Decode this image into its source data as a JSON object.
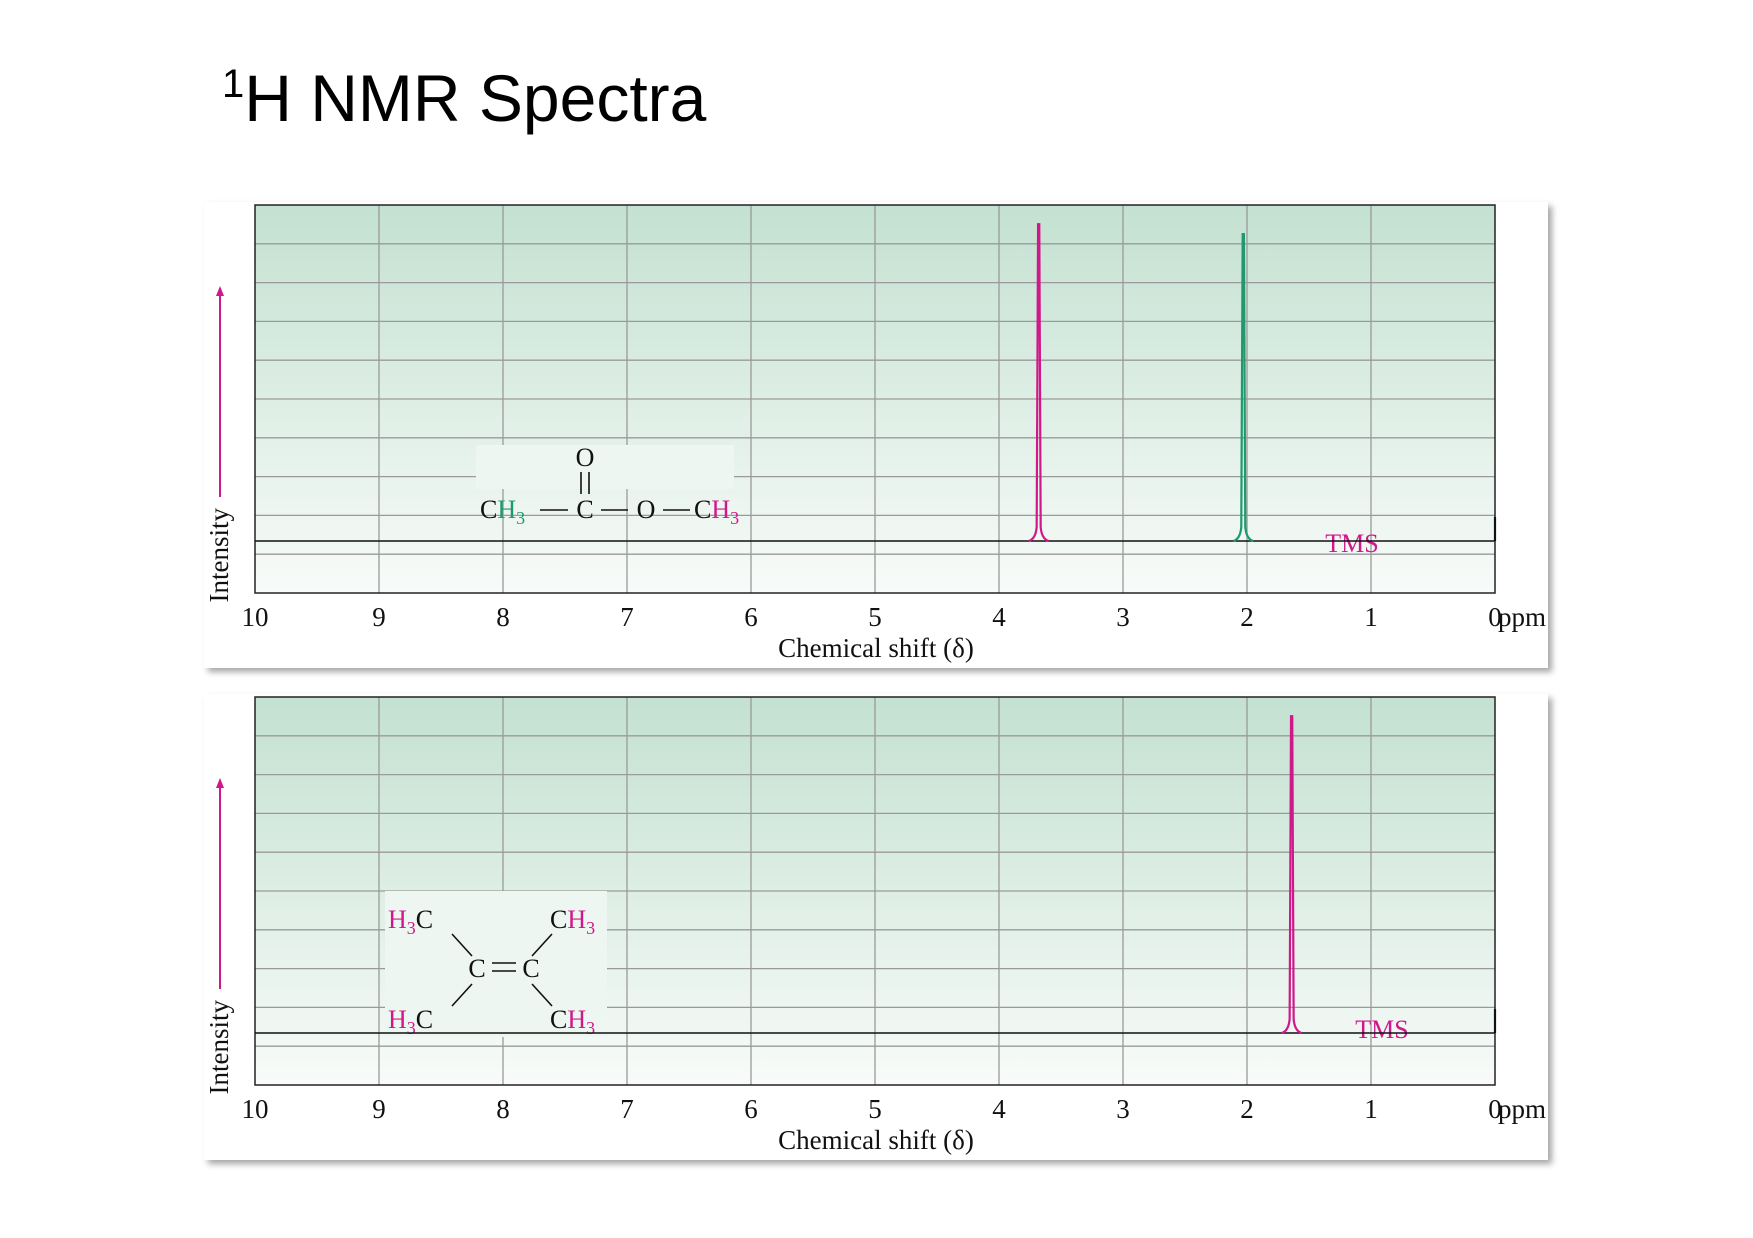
{
  "title": {
    "sup": "1",
    "text": "H NMR Spectra"
  },
  "colors": {
    "magenta": "#d1188a",
    "green": "#1e9a6e",
    "grid": "#9a9a9a",
    "bg_top": "#c3e1d1",
    "bg_bottom": "#f8fbf9"
  },
  "chart_data": [
    {
      "type": "line",
      "ylabel": "Intensity",
      "xlabel": "Chemical shift (δ)",
      "xlim": [
        10,
        0
      ],
      "x_reversed": true,
      "ticks": [
        "10",
        "9",
        "8",
        "7",
        "6",
        "5",
        "4",
        "3",
        "2",
        "1",
        "0"
      ],
      "unit": "ppm",
      "grid": true,
      "peaks": [
        {
          "x": 3.68,
          "height": 0.96,
          "color": "magenta"
        },
        {
          "x": 2.03,
          "height": 0.93,
          "color": "green"
        },
        {
          "x": 0.0,
          "height": 0.06,
          "color": "black",
          "label": "TMS"
        }
      ],
      "molecule": "methyl acetate",
      "molecule_labels": {
        "o": "O",
        "ch3_left": "CH",
        "sub3": "3",
        "c": "C",
        "o_ester": "O",
        "ch3_right": "CH"
      }
    },
    {
      "type": "line",
      "ylabel": "Intensity",
      "xlabel": "Chemical shift (δ)",
      "xlim": [
        10,
        0
      ],
      "x_reversed": true,
      "ticks": [
        "10",
        "9",
        "8",
        "7",
        "6",
        "5",
        "4",
        "3",
        "2",
        "1",
        "0"
      ],
      "unit": "ppm",
      "grid": true,
      "peaks": [
        {
          "x": 1.64,
          "height": 0.96,
          "color": "magenta"
        },
        {
          "x": 0.0,
          "height": 0.06,
          "color": "black",
          "label": "TMS"
        }
      ],
      "molecule": "2,3-dimethyl-2-butene",
      "molecule_labels": {
        "h3c": "H",
        "ch3": "CH",
        "sub3": "3",
        "c": "C"
      }
    }
  ]
}
